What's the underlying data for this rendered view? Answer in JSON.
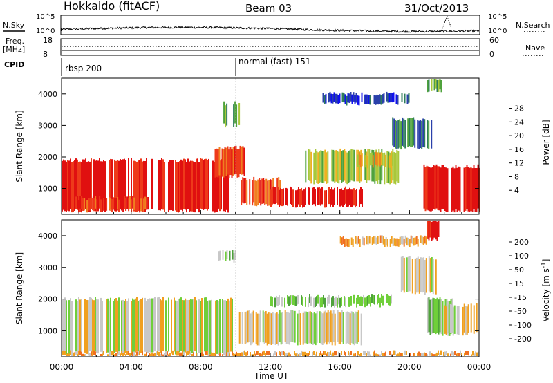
{
  "header": {
    "title": "Hokkaido (fitACF)",
    "beam": "Beam 03",
    "date": "31/Oct/2013"
  },
  "params_panel": {
    "nsky_label": "N.Sky",
    "nsearch_label": "N.Search",
    "nsky_ticks": [
      "10^5",
      "10^0"
    ],
    "freq_label_line1": "Freq.",
    "freq_label_line2": "[MHz]",
    "freq_ticks": [
      "18",
      "8"
    ],
    "nave_label": "Nave",
    "nave_ticks": [
      "60",
      "0"
    ],
    "cpid_label": "CPID",
    "cpid_segments": [
      {
        "label": "rbsp 200",
        "start_hour": 0
      },
      {
        "label": "normal (fast) 151",
        "start_hour": 10
      }
    ]
  },
  "chart_data": [
    {
      "type": "heatmap",
      "title": "",
      "xlabel": "Time UT",
      "ylabel": "Slant Range [km]",
      "x_ticks": [
        "00:00",
        "04:00",
        "08:00",
        "12:00",
        "16:00",
        "20:00",
        "00:00"
      ],
      "x_range_hours": [
        0,
        24
      ],
      "y_ticks": [
        1000,
        2000,
        3000,
        4000
      ],
      "ylim": [
        180,
        4500
      ],
      "colorbar": {
        "label": "Power [dB]",
        "ticks": [
          "4",
          "8",
          "12",
          "16",
          "20",
          "24",
          "28"
        ],
        "colors": [
          "#1010ee",
          "#2a40aa",
          "#2e7d5a",
          "#4fa23c",
          "#a8c83a",
          "#f0b020",
          "#f08020",
          "#ee3a1a",
          "#e01010"
        ]
      },
      "regions": [
        {
          "t0": 0.0,
          "t1": 9.6,
          "r0": 300,
          "r1": 1900,
          "level": 8
        },
        {
          "t0": 0.8,
          "t1": 5.0,
          "r0": 300,
          "r1": 700,
          "level": 7
        },
        {
          "t0": 8.8,
          "t1": 10.5,
          "r0": 1400,
          "r1": 2300,
          "level": 7
        },
        {
          "t0": 9.3,
          "t1": 10.2,
          "r0": 3000,
          "r1": 3700,
          "level": 3
        },
        {
          "t0": 10.3,
          "t1": 12.6,
          "r0": 500,
          "r1": 1300,
          "level": 7
        },
        {
          "t0": 12.0,
          "t1": 17.3,
          "r0": 450,
          "r1": 1000,
          "level": 8
        },
        {
          "t0": 14.0,
          "t1": 19.4,
          "r0": 1200,
          "r1": 2200,
          "level": 4
        },
        {
          "t0": 17.0,
          "t1": 19.0,
          "r0": 1700,
          "r1": 2100,
          "level": 5
        },
        {
          "t0": 19.0,
          "t1": 21.3,
          "r0": 2300,
          "r1": 3200,
          "level": 2
        },
        {
          "t0": 20.8,
          "t1": 24.0,
          "r0": 300,
          "r1": 1700,
          "level": 8
        },
        {
          "t0": 15.0,
          "t1": 20.0,
          "r0": 3700,
          "r1": 4000,
          "level": 1
        },
        {
          "t0": 21.0,
          "t1": 21.8,
          "r0": 4100,
          "r1": 4500,
          "level": 3
        }
      ]
    },
    {
      "type": "heatmap",
      "title": "",
      "xlabel": "Time UT",
      "ylabel": "Slant Range [km]",
      "x_ticks": [
        "00:00",
        "04:00",
        "08:00",
        "12:00",
        "16:00",
        "20:00",
        "00:00"
      ],
      "x_range_hours": [
        0,
        24
      ],
      "y_ticks": [
        1000,
        2000,
        3000,
        4000
      ],
      "ylim": [
        180,
        4500
      ],
      "colorbar": {
        "label": "Velocity [m s^-1]",
        "ticks": [
          "200",
          "100",
          "50",
          "15",
          "-15",
          "-50",
          "-100",
          "-200"
        ],
        "colors": [
          "#2a3ab0",
          "#2e7d5a",
          "#4fa23c",
          "#6fcf3a",
          "#c8c8c8",
          "#f0a020",
          "#f07020",
          "#ee3a1a",
          "#e01010"
        ]
      },
      "regions": [
        {
          "t0": 0.0,
          "t1": 9.8,
          "r0": 300,
          "r1": 2000,
          "level": 4
        },
        {
          "t0": 10.2,
          "t1": 17.2,
          "r0": 600,
          "r1": 1600,
          "level": 4
        },
        {
          "t0": 12.0,
          "t1": 19.0,
          "r0": 1800,
          "r1": 2100,
          "level": 3
        },
        {
          "t0": 19.5,
          "t1": 21.5,
          "r0": 2200,
          "r1": 3300,
          "level": 4
        },
        {
          "t0": 21.0,
          "t1": 22.5,
          "r0": 900,
          "r1": 2000,
          "level": 3
        },
        {
          "t0": 22.0,
          "t1": 24.0,
          "r0": 900,
          "r1": 1800,
          "level": 4
        },
        {
          "t0": 9.0,
          "t1": 10.0,
          "r0": 3200,
          "r1": 3500,
          "level": 3
        },
        {
          "t0": 21.0,
          "t1": 21.8,
          "r0": 3900,
          "r1": 4500,
          "level": 8
        },
        {
          "t0": 16.0,
          "t1": 21.0,
          "r0": 3700,
          "r1": 3950,
          "level": 5
        },
        {
          "t0": 0.0,
          "t1": 24.0,
          "r0": 180,
          "r1": 320,
          "level": 5
        }
      ]
    }
  ]
}
